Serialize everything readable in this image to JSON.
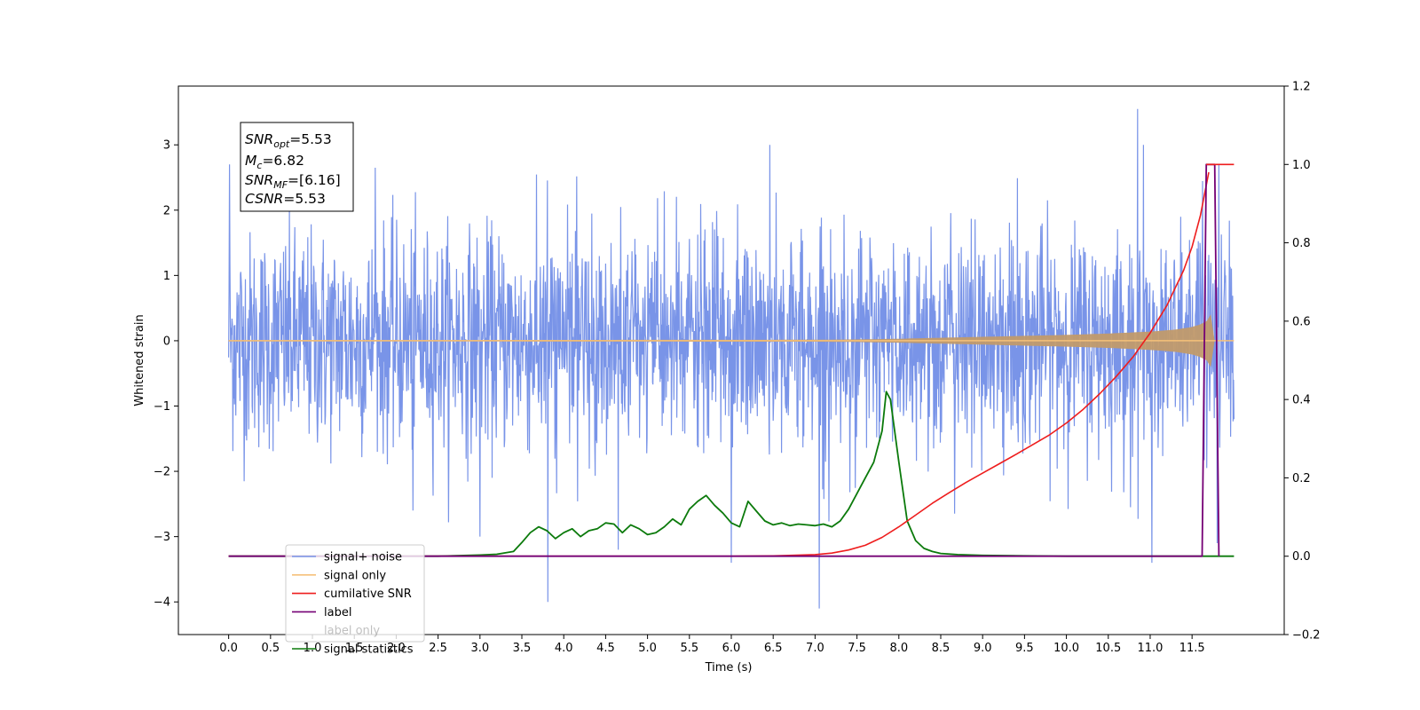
{
  "chart_data": {
    "type": "line",
    "xlabel": "Time (s)",
    "ylabel": "Whitened strain",
    "xlim": [
      -0.6,
      12.6
    ],
    "ylim": [
      -4.5,
      3.9
    ],
    "y2lim": [
      -0.2,
      1.2
    ],
    "x_ticks": [
      "0.0",
      "0.5",
      "1.0",
      "1.5",
      "2.0",
      "2.5",
      "3.0",
      "3.5",
      "4.0",
      "4.5",
      "5.0",
      "5.5",
      "6.0",
      "6.5",
      "7.0",
      "7.5",
      "8.0",
      "8.5",
      "9.0",
      "9.5",
      "10.0",
      "10.5",
      "11.0",
      "11.5"
    ],
    "y_ticks": [
      "3",
      "2",
      "1",
      "0",
      "−1",
      "−2",
      "−3",
      "−4"
    ],
    "y2_ticks": [
      "1.2",
      "1.0",
      "0.8",
      "0.6",
      "0.4",
      "0.2",
      "0.0",
      "−0.2"
    ],
    "grid": false,
    "legend_position": "lower-left",
    "annotation": {
      "snr_opt": {
        "main": "SNR",
        "sub": "opt",
        "value": "=5.53"
      },
      "mc": {
        "main": "M",
        "sub": "c",
        "value": "=6.82"
      },
      "snr_mf": {
        "main": "SNR",
        "sub": "MF",
        "value": "=[6.16]"
      },
      "csnr": {
        "main": "CSNR",
        "value": "=5.53"
      }
    },
    "series": [
      {
        "name": "signal+ noise",
        "color": "#7994e8",
        "axis": "left",
        "description": "whitened noise plus signal, roughly gaussian, mostly within ±2.5 with outliers",
        "spikes": [
          [
            0.01,
            2.7
          ],
          [
            3.81,
            -4.0
          ],
          [
            7.05,
            -4.1
          ],
          [
            10.85,
            3.55
          ],
          [
            11.02,
            -3.4
          ],
          [
            6.0,
            -3.4
          ],
          [
            1.75,
            2.65
          ],
          [
            6.46,
            3.0
          ],
          [
            10.92,
            3.0
          ],
          [
            11.8,
            -3.1
          ],
          [
            11.82,
            2.7
          ],
          [
            3.0,
            -3.0
          ],
          [
            4.65,
            -3.2
          ],
          [
            2.2,
            -2.6
          ]
        ]
      },
      {
        "name": "signal only",
        "color": "#c19a6b",
        "axis": "left",
        "envelope_x": [
          0.0,
          7.0,
          7.5,
          8.0,
          8.5,
          9.0,
          9.5,
          10.0,
          10.5,
          11.0,
          11.3,
          11.5,
          11.6,
          11.7,
          11.72,
          11.75,
          12.0
        ],
        "envelope_amp": [
          0.01,
          0.015,
          0.02,
          0.03,
          0.045,
          0.06,
          0.075,
          0.09,
          0.11,
          0.14,
          0.17,
          0.21,
          0.25,
          0.32,
          0.45,
          0.0,
          0.0
        ]
      },
      {
        "name": "cumilative SNR",
        "color": "#ee1d1d",
        "axis": "right",
        "x": [
          0.0,
          6.0,
          6.5,
          7.0,
          7.2,
          7.4,
          7.6,
          7.8,
          8.0,
          8.2,
          8.4,
          8.6,
          8.8,
          9.0,
          9.2,
          9.4,
          9.6,
          9.8,
          10.0,
          10.2,
          10.4,
          10.6,
          10.8,
          11.0,
          11.2,
          11.4,
          11.5,
          11.6,
          11.7
        ],
        "y": [
          0.0,
          0.0,
          0.001,
          0.004,
          0.008,
          0.016,
          0.028,
          0.048,
          0.075,
          0.105,
          0.135,
          0.162,
          0.188,
          0.212,
          0.236,
          0.26,
          0.285,
          0.31,
          0.34,
          0.375,
          0.415,
          0.46,
          0.51,
          0.57,
          0.64,
          0.73,
          0.79,
          0.87,
          0.98
        ]
      },
      {
        "name": "label",
        "color": "#750075",
        "axis": "right",
        "x": [
          0.0,
          11.62,
          11.67,
          11.77,
          11.82
        ],
        "y": [
          0.0,
          0.0,
          1.0,
          1.0,
          0.0
        ]
      },
      {
        "name": "label only",
        "color": "#ee1d1d",
        "axis": "right",
        "x": [
          11.67,
          12.0
        ],
        "y": [
          1.0,
          1.0
        ]
      },
      {
        "name": "signal statistics",
        "color": "#0b7a0b",
        "axis": "right",
        "x": [
          0.0,
          2.5,
          3.0,
          3.2,
          3.4,
          3.5,
          3.6,
          3.7,
          3.8,
          3.9,
          4.0,
          4.1,
          4.2,
          4.3,
          4.4,
          4.5,
          4.6,
          4.7,
          4.8,
          4.9,
          5.0,
          5.1,
          5.2,
          5.3,
          5.4,
          5.5,
          5.6,
          5.7,
          5.8,
          5.9,
          6.0,
          6.1,
          6.2,
          6.3,
          6.4,
          6.5,
          6.6,
          6.7,
          6.8,
          6.9,
          7.0,
          7.1,
          7.2,
          7.3,
          7.4,
          7.5,
          7.6,
          7.7,
          7.8,
          7.85,
          7.9,
          8.0,
          8.1,
          8.2,
          8.3,
          8.4,
          8.5,
          8.7,
          9.0,
          9.5,
          10.0,
          12.0
        ],
        "y": [
          0.0,
          0.0,
          0.003,
          0.005,
          0.012,
          0.035,
          0.06,
          0.075,
          0.065,
          0.045,
          0.06,
          0.07,
          0.05,
          0.065,
          0.07,
          0.085,
          0.082,
          0.06,
          0.08,
          0.07,
          0.055,
          0.06,
          0.075,
          0.095,
          0.08,
          0.12,
          0.14,
          0.155,
          0.13,
          0.11,
          0.085,
          0.075,
          0.14,
          0.115,
          0.09,
          0.08,
          0.085,
          0.078,
          0.082,
          0.08,
          0.078,
          0.082,
          0.075,
          0.09,
          0.12,
          0.16,
          0.2,
          0.24,
          0.32,
          0.42,
          0.4,
          0.24,
          0.09,
          0.04,
          0.02,
          0.012,
          0.007,
          0.004,
          0.002,
          0.001,
          0.0,
          0.0
        ]
      }
    ]
  }
}
